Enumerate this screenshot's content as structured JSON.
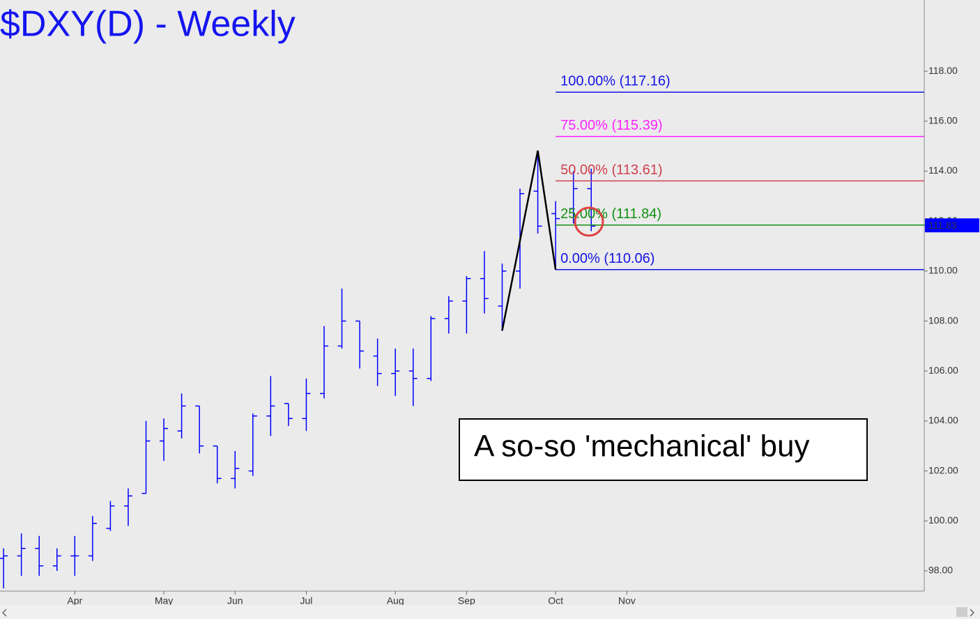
{
  "chart_data": {
    "type": "ohlc",
    "title": "$DXY(D) - Weekly",
    "color": "#0000ff",
    "x": [
      0,
      1,
      2,
      3,
      4,
      5,
      6,
      7,
      8,
      9,
      10,
      11,
      12,
      13,
      14,
      15,
      16,
      17,
      18,
      19,
      20,
      21,
      22,
      23,
      24,
      25,
      26,
      27,
      28,
      29,
      30,
      31,
      32,
      33
    ],
    "open": [
      98.5,
      98.6,
      98.9,
      98.2,
      98.6,
      98.6,
      99.7,
      100.6,
      101.1,
      103.2,
      103.6,
      104.6,
      103.0,
      101.7,
      102.0,
      104.2,
      104.7,
      104.1,
      105.1,
      107.0,
      108.0,
      106.6,
      105.9,
      106.0,
      105.7,
      108.1,
      108.8,
      109.7,
      108.6,
      110.0,
      113.2,
      112.3,
      112.5,
      113.3
    ],
    "high": [
      98.9,
      99.5,
      99.4,
      98.9,
      99.4,
      100.2,
      100.8,
      101.3,
      104.0,
      104.1,
      105.1,
      104.6,
      103.0,
      102.8,
      104.3,
      105.8,
      104.7,
      105.7,
      107.8,
      109.3,
      108.0,
      107.3,
      106.9,
      106.9,
      108.2,
      109.0,
      109.8,
      110.8,
      110.3,
      113.3,
      114.8,
      112.8,
      114.0,
      114.1
    ],
    "low": [
      97.3,
      97.8,
      97.8,
      98.0,
      97.8,
      98.4,
      99.6,
      99.8,
      101.1,
      102.4,
      103.3,
      102.7,
      101.5,
      101.3,
      101.8,
      103.4,
      103.8,
      103.6,
      104.9,
      106.9,
      106.1,
      105.4,
      105.0,
      104.6,
      105.6,
      107.5,
      107.5,
      108.3,
      107.6,
      109.3,
      111.5,
      110.1,
      111.9,
      111.6
    ],
    "close": [
      98.6,
      98.9,
      98.2,
      98.6,
      98.6,
      99.9,
      100.6,
      101.0,
      103.2,
      103.7,
      104.6,
      103.0,
      101.7,
      102.1,
      104.2,
      104.6,
      104.1,
      105.1,
      107.0,
      108.0,
      106.8,
      105.9,
      106.0,
      105.7,
      108.1,
      108.8,
      109.7,
      108.9,
      110.0,
      113.1,
      111.8,
      112.1,
      113.3,
      111.8
    ],
    "xlim": [
      -0.2,
      51.7
    ],
    "xticks": [
      {
        "value": 4,
        "label": "Apr"
      },
      {
        "value": 9,
        "label": "May"
      },
      {
        "value": 13,
        "label": "Jun"
      },
      {
        "value": 17,
        "label": "Jul"
      },
      {
        "value": 22,
        "label": "Aug"
      },
      {
        "value": 26,
        "label": "Sep"
      },
      {
        "value": 31,
        "label": "Oct"
      },
      {
        "value": 35,
        "label": "Nov"
      }
    ],
    "ylim": [
      97.19,
      120.85
    ],
    "yticks": [
      {
        "value": 98,
        "label": "98.00"
      },
      {
        "value": 100,
        "label": "100.00"
      },
      {
        "value": 102,
        "label": "102.00"
      },
      {
        "value": 104,
        "label": "104.00"
      },
      {
        "value": 106,
        "label": "106.00"
      },
      {
        "value": 108,
        "label": "108.00"
      },
      {
        "value": 110,
        "label": "110.00"
      },
      {
        "value": 112,
        "label": "112.00"
      },
      {
        "value": 114,
        "label": "114.00"
      },
      {
        "value": 116,
        "label": "116.00"
      },
      {
        "value": 118,
        "label": "118.00"
      }
    ],
    "zigzag": {
      "color": "#000000",
      "x": [
        28,
        30,
        31
      ],
      "values": [
        107.62,
        114.82,
        110.05
      ]
    },
    "levels": [
      {
        "label": "100.00% (117.16)",
        "value": 117.16,
        "color": "#1414e6"
      },
      {
        "label": "75.00% (115.39)",
        "value": 115.39,
        "color": "#ff22ff"
      },
      {
        "label": "50.00% (113.61)",
        "value": 113.61,
        "color": "#d04050"
      },
      {
        "label": "25.00% (111.84)",
        "value": 111.84,
        "color": "#109010"
      },
      {
        "label": "0.00% (110.06)",
        "value": 110.06,
        "color": "#1414e6"
      }
    ],
    "last_price": 111.83,
    "annotation": "A so-so 'mechanical' buy"
  }
}
